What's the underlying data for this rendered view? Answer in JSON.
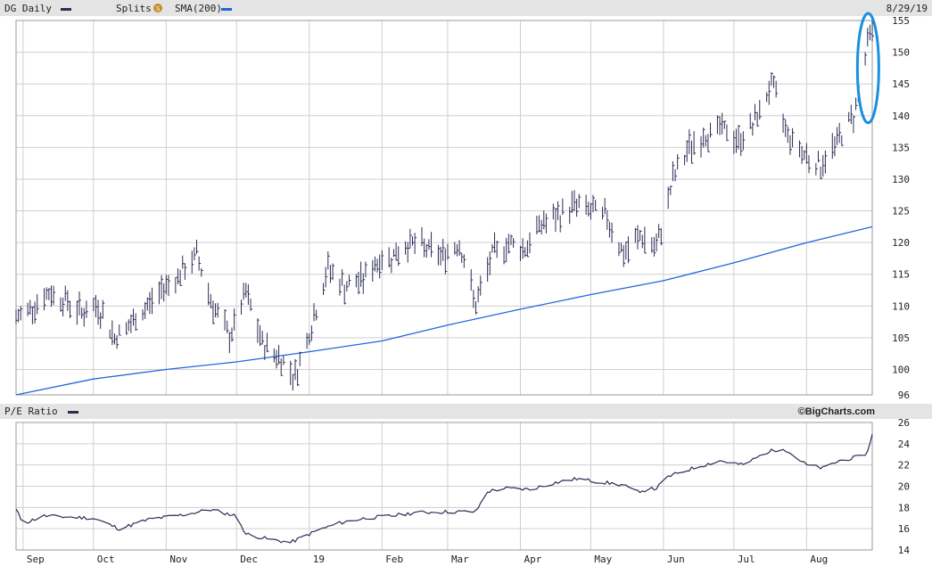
{
  "chart_data": [
    {
      "type": "ohlc",
      "title": "DG Daily",
      "legend": [
        {
          "label": "DG Daily",
          "color": "#2b2b55"
        },
        {
          "label": "Splits",
          "badge": "S",
          "color": "#c98a2a"
        },
        {
          "label": "SMA(200)",
          "color": "#2266dd"
        }
      ],
      "date_label": "8/29/19",
      "ylim": [
        96,
        155
      ],
      "y_ticks": [
        96,
        100,
        105,
        110,
        115,
        120,
        125,
        130,
        135,
        140,
        145,
        150,
        155
      ],
      "x_range": [
        "2018-08-29",
        "2019-08-29"
      ],
      "months": [
        {
          "date": "2018-09-01",
          "label": "Sep"
        },
        {
          "date": "2018-10-01",
          "label": "Oct"
        },
        {
          "date": "2018-11-01",
          "label": "Nov"
        },
        {
          "date": "2018-12-01",
          "label": "Dec"
        },
        {
          "date": "2019-01-01",
          "label": "19"
        },
        {
          "date": "2019-02-01",
          "label": "Feb"
        },
        {
          "date": "2019-03-01",
          "label": "Mar"
        },
        {
          "date": "2019-04-01",
          "label": "Apr"
        },
        {
          "date": "2019-05-01",
          "label": "May"
        },
        {
          "date": "2019-06-01",
          "label": "Jun"
        },
        {
          "date": "2019-07-01",
          "label": "Jul"
        },
        {
          "date": "2019-08-01",
          "label": "Aug"
        }
      ],
      "price_color": "#2b2b55",
      "sma_color": "#2266dd",
      "price_series": [
        [
          "2018-08-29",
          108
        ],
        [
          "2018-09-05",
          110
        ],
        [
          "2018-09-12",
          112
        ],
        [
          "2018-09-19",
          111
        ],
        [
          "2018-09-26",
          109
        ],
        [
          "2018-10-03",
          110
        ],
        [
          "2018-10-10",
          105
        ],
        [
          "2018-10-17",
          107
        ],
        [
          "2018-10-24",
          110
        ],
        [
          "2018-10-31",
          113
        ],
        [
          "2018-11-07",
          115
        ],
        [
          "2018-11-14",
          118
        ],
        [
          "2018-11-21",
          110
        ],
        [
          "2018-11-28",
          105
        ],
        [
          "2018-12-05",
          112
        ],
        [
          "2018-12-12",
          104
        ],
        [
          "2018-12-19",
          102
        ],
        [
          "2018-12-26",
          99
        ],
        [
          "2019-01-02",
          107
        ],
        [
          "2019-01-09",
          116
        ],
        [
          "2019-01-16",
          113
        ],
        [
          "2019-01-23",
          114
        ],
        [
          "2019-01-30",
          117
        ],
        [
          "2019-02-06",
          118
        ],
        [
          "2019-02-13",
          120
        ],
        [
          "2019-02-20",
          119
        ],
        [
          "2019-02-27",
          118
        ],
        [
          "2019-03-06",
          120
        ],
        [
          "2019-03-13",
          110
        ],
        [
          "2019-03-20",
          118
        ],
        [
          "2019-03-27",
          120
        ],
        [
          "2019-04-03",
          119
        ],
        [
          "2019-04-10",
          123
        ],
        [
          "2019-04-17",
          124
        ],
        [
          "2019-04-24",
          126
        ],
        [
          "2019-05-01",
          125
        ],
        [
          "2019-05-08",
          124
        ],
        [
          "2019-05-15",
          118
        ],
        [
          "2019-05-22",
          121
        ],
        [
          "2019-05-29",
          119
        ],
        [
          "2019-06-05",
          130
        ],
        [
          "2019-06-12",
          135
        ],
        [
          "2019-06-19",
          137
        ],
        [
          "2019-06-26",
          138
        ],
        [
          "2019-07-03",
          136
        ],
        [
          "2019-07-10",
          139
        ],
        [
          "2019-07-17",
          145
        ],
        [
          "2019-07-24",
          137
        ],
        [
          "2019-07-31",
          134
        ],
        [
          "2019-08-07",
          132
        ],
        [
          "2019-08-14",
          136
        ],
        [
          "2019-08-21",
          140
        ],
        [
          "2019-08-28",
          153
        ]
      ],
      "sma_series": [
        [
          "2018-08-29",
          96
        ],
        [
          "2018-10-01",
          98.5
        ],
        [
          "2018-11-01",
          100
        ],
        [
          "2018-12-01",
          101.2
        ],
        [
          "2019-01-01",
          102.8
        ],
        [
          "2019-02-01",
          104.5
        ],
        [
          "2019-03-01",
          107
        ],
        [
          "2019-04-01",
          109.5
        ],
        [
          "2019-05-01",
          111.8
        ],
        [
          "2019-06-01",
          114
        ],
        [
          "2019-07-01",
          116.8
        ],
        [
          "2019-08-01",
          120
        ],
        [
          "2019-08-29",
          122.5
        ]
      ],
      "annotation": {
        "type": "ellipse",
        "color": "#1a8fe0",
        "date": "2019-08-28",
        "y_range": [
          140,
          155
        ]
      }
    },
    {
      "type": "line",
      "title": "P/E Ratio",
      "brand": "©BigCharts.com",
      "ylim": [
        14,
        26
      ],
      "y_ticks": [
        14,
        16,
        18,
        20,
        22,
        24,
        26
      ],
      "color": "#2b2b55",
      "series": [
        [
          "2018-08-29",
          17.8
        ],
        [
          "2018-09-01",
          16.5
        ],
        [
          "2018-09-10",
          17.2
        ],
        [
          "2018-09-20",
          17.1
        ],
        [
          "2018-10-01",
          17.0
        ],
        [
          "2018-10-12",
          16.0
        ],
        [
          "2018-10-25",
          16.9
        ],
        [
          "2018-11-08",
          17.3
        ],
        [
          "2018-11-20",
          17.8
        ],
        [
          "2018-12-01",
          17.2
        ],
        [
          "2018-12-05",
          15.5
        ],
        [
          "2018-12-15",
          15.0
        ],
        [
          "2018-12-24",
          14.7
        ],
        [
          "2019-01-05",
          15.9
        ],
        [
          "2019-01-15",
          16.6
        ],
        [
          "2019-01-25",
          17.0
        ],
        [
          "2019-02-05",
          17.2
        ],
        [
          "2019-02-15",
          17.5
        ],
        [
          "2019-03-01",
          17.6
        ],
        [
          "2019-03-13",
          17.6
        ],
        [
          "2019-03-18",
          19.5
        ],
        [
          "2019-03-25",
          19.8
        ],
        [
          "2019-04-05",
          19.7
        ],
        [
          "2019-04-15",
          20.3
        ],
        [
          "2019-04-25",
          20.7
        ],
        [
          "2019-05-05",
          20.4
        ],
        [
          "2019-05-15",
          20.1
        ],
        [
          "2019-05-20",
          19.5
        ],
        [
          "2019-05-29",
          19.8
        ],
        [
          "2019-06-03",
          20.9
        ],
        [
          "2019-06-15",
          21.8
        ],
        [
          "2019-06-25",
          22.4
        ],
        [
          "2019-07-05",
          22.0
        ],
        [
          "2019-07-15",
          23.2
        ],
        [
          "2019-07-22",
          23.6
        ],
        [
          "2019-08-01",
          22.0
        ],
        [
          "2019-08-08",
          21.7
        ],
        [
          "2019-08-15",
          22.4
        ],
        [
          "2019-08-24",
          22.8
        ],
        [
          "2019-08-27",
          23.2
        ],
        [
          "2019-08-29",
          25.0
        ]
      ]
    }
  ]
}
